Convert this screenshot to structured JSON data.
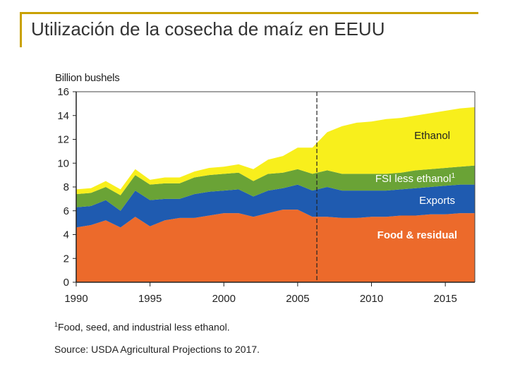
{
  "slide": {
    "title": "Utilización de la cosecha de maíz en EEUU"
  },
  "colors": {
    "food": "#ec6a2b",
    "exports": "#1f5bb0",
    "fsi": "#6aa336",
    "ethanol": "#f8ef1c",
    "accent": "#c9a100"
  },
  "chart_data": {
    "type": "area",
    "stacked": true,
    "ylabel": "Billion bushels",
    "ylim": [
      0,
      16
    ],
    "yticks": [
      0,
      2,
      4,
      6,
      8,
      10,
      12,
      14,
      16
    ],
    "xlim": [
      1990,
      2017
    ],
    "xticks": [
      1990,
      1995,
      2000,
      2005,
      2010,
      2015
    ],
    "projection_start": 2006.3,
    "x": [
      1990,
      1991,
      1992,
      1993,
      1994,
      1995,
      1996,
      1997,
      1998,
      1999,
      2000,
      2001,
      2002,
      2003,
      2004,
      2005,
      2006,
      2007,
      2008,
      2009,
      2010,
      2011,
      2012,
      2013,
      2014,
      2015,
      2016,
      2017
    ],
    "series": [
      {
        "name": "Food & residual",
        "key": "food",
        "values": [
          4.6,
          4.8,
          5.2,
          4.6,
          5.5,
          4.7,
          5.2,
          5.4,
          5.4,
          5.6,
          5.8,
          5.8,
          5.5,
          5.8,
          6.1,
          6.1,
          5.5,
          5.5,
          5.4,
          5.4,
          5.5,
          5.5,
          5.6,
          5.6,
          5.7,
          5.7,
          5.8,
          5.8
        ]
      },
      {
        "name": "Exports",
        "key": "exports",
        "values": [
          1.7,
          1.6,
          1.7,
          1.4,
          2.2,
          2.2,
          1.8,
          1.6,
          2.0,
          2.0,
          1.9,
          2.0,
          1.7,
          1.9,
          1.8,
          2.1,
          2.2,
          2.5,
          2.3,
          2.3,
          2.2,
          2.2,
          2.2,
          2.3,
          2.3,
          2.4,
          2.4,
          2.4
        ]
      },
      {
        "name": "FSI less ethanol",
        "superscript": "1",
        "key": "fsi",
        "values": [
          1.1,
          1.1,
          1.1,
          1.3,
          1.3,
          1.3,
          1.3,
          1.3,
          1.4,
          1.4,
          1.4,
          1.4,
          1.3,
          1.4,
          1.3,
          1.3,
          1.4,
          1.4,
          1.4,
          1.4,
          1.4,
          1.4,
          1.4,
          1.5,
          1.5,
          1.5,
          1.5,
          1.6
        ]
      },
      {
        "name": "Ethanol",
        "key": "ethanol",
        "values": [
          0.4,
          0.4,
          0.5,
          0.5,
          0.5,
          0.4,
          0.5,
          0.5,
          0.5,
          0.6,
          0.6,
          0.7,
          1.0,
          1.2,
          1.4,
          1.8,
          2.2,
          3.2,
          4.0,
          4.3,
          4.4,
          4.6,
          4.6,
          4.6,
          4.7,
          4.8,
          4.9,
          4.9
        ]
      }
    ],
    "footnote": "Food, seed, and industrial less ethanol.",
    "footnote_marker": "1",
    "source": "Source: USDA Agricultural Projections to 2017."
  }
}
